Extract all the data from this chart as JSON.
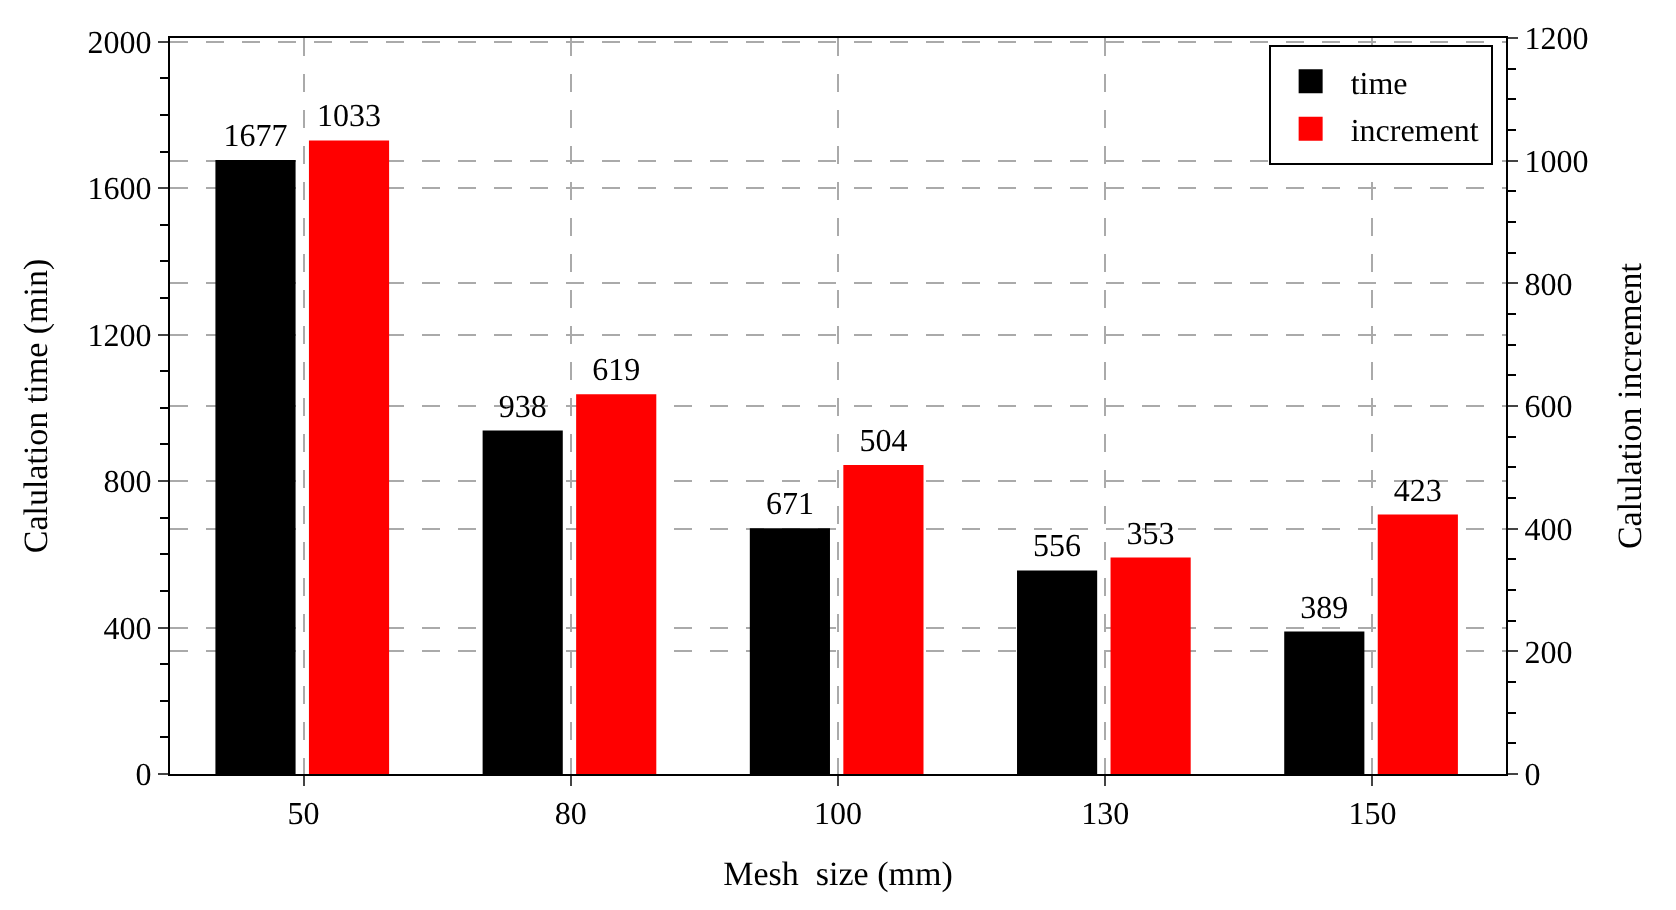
{
  "chart_data": {
    "type": "bar",
    "xlabel": "Mesh  size (mm)",
    "ylabel": "Calulation time (min)",
    "y2label": "Calulation increment",
    "categories": [
      "50",
      "80",
      "100",
      "130",
      "150"
    ],
    "series": [
      {
        "name": "time",
        "color": "#000000",
        "values": [
          1677,
          938,
          671,
          556,
          389
        ]
      },
      {
        "name": "increment",
        "color": "#ff0000",
        "values": [
          1033,
          619,
          504,
          353,
          423
        ],
        "axis": "y2"
      }
    ],
    "ylim": [
      0,
      2010
    ],
    "yticks": [
      0,
      400,
      800,
      1200,
      1600,
      2000
    ],
    "y2lim": [
      0,
      1200
    ],
    "y2ticks": [
      0,
      200,
      400,
      600,
      800,
      1000,
      1200
    ],
    "data_labels": true,
    "grid": true,
    "legend": "top right"
  }
}
